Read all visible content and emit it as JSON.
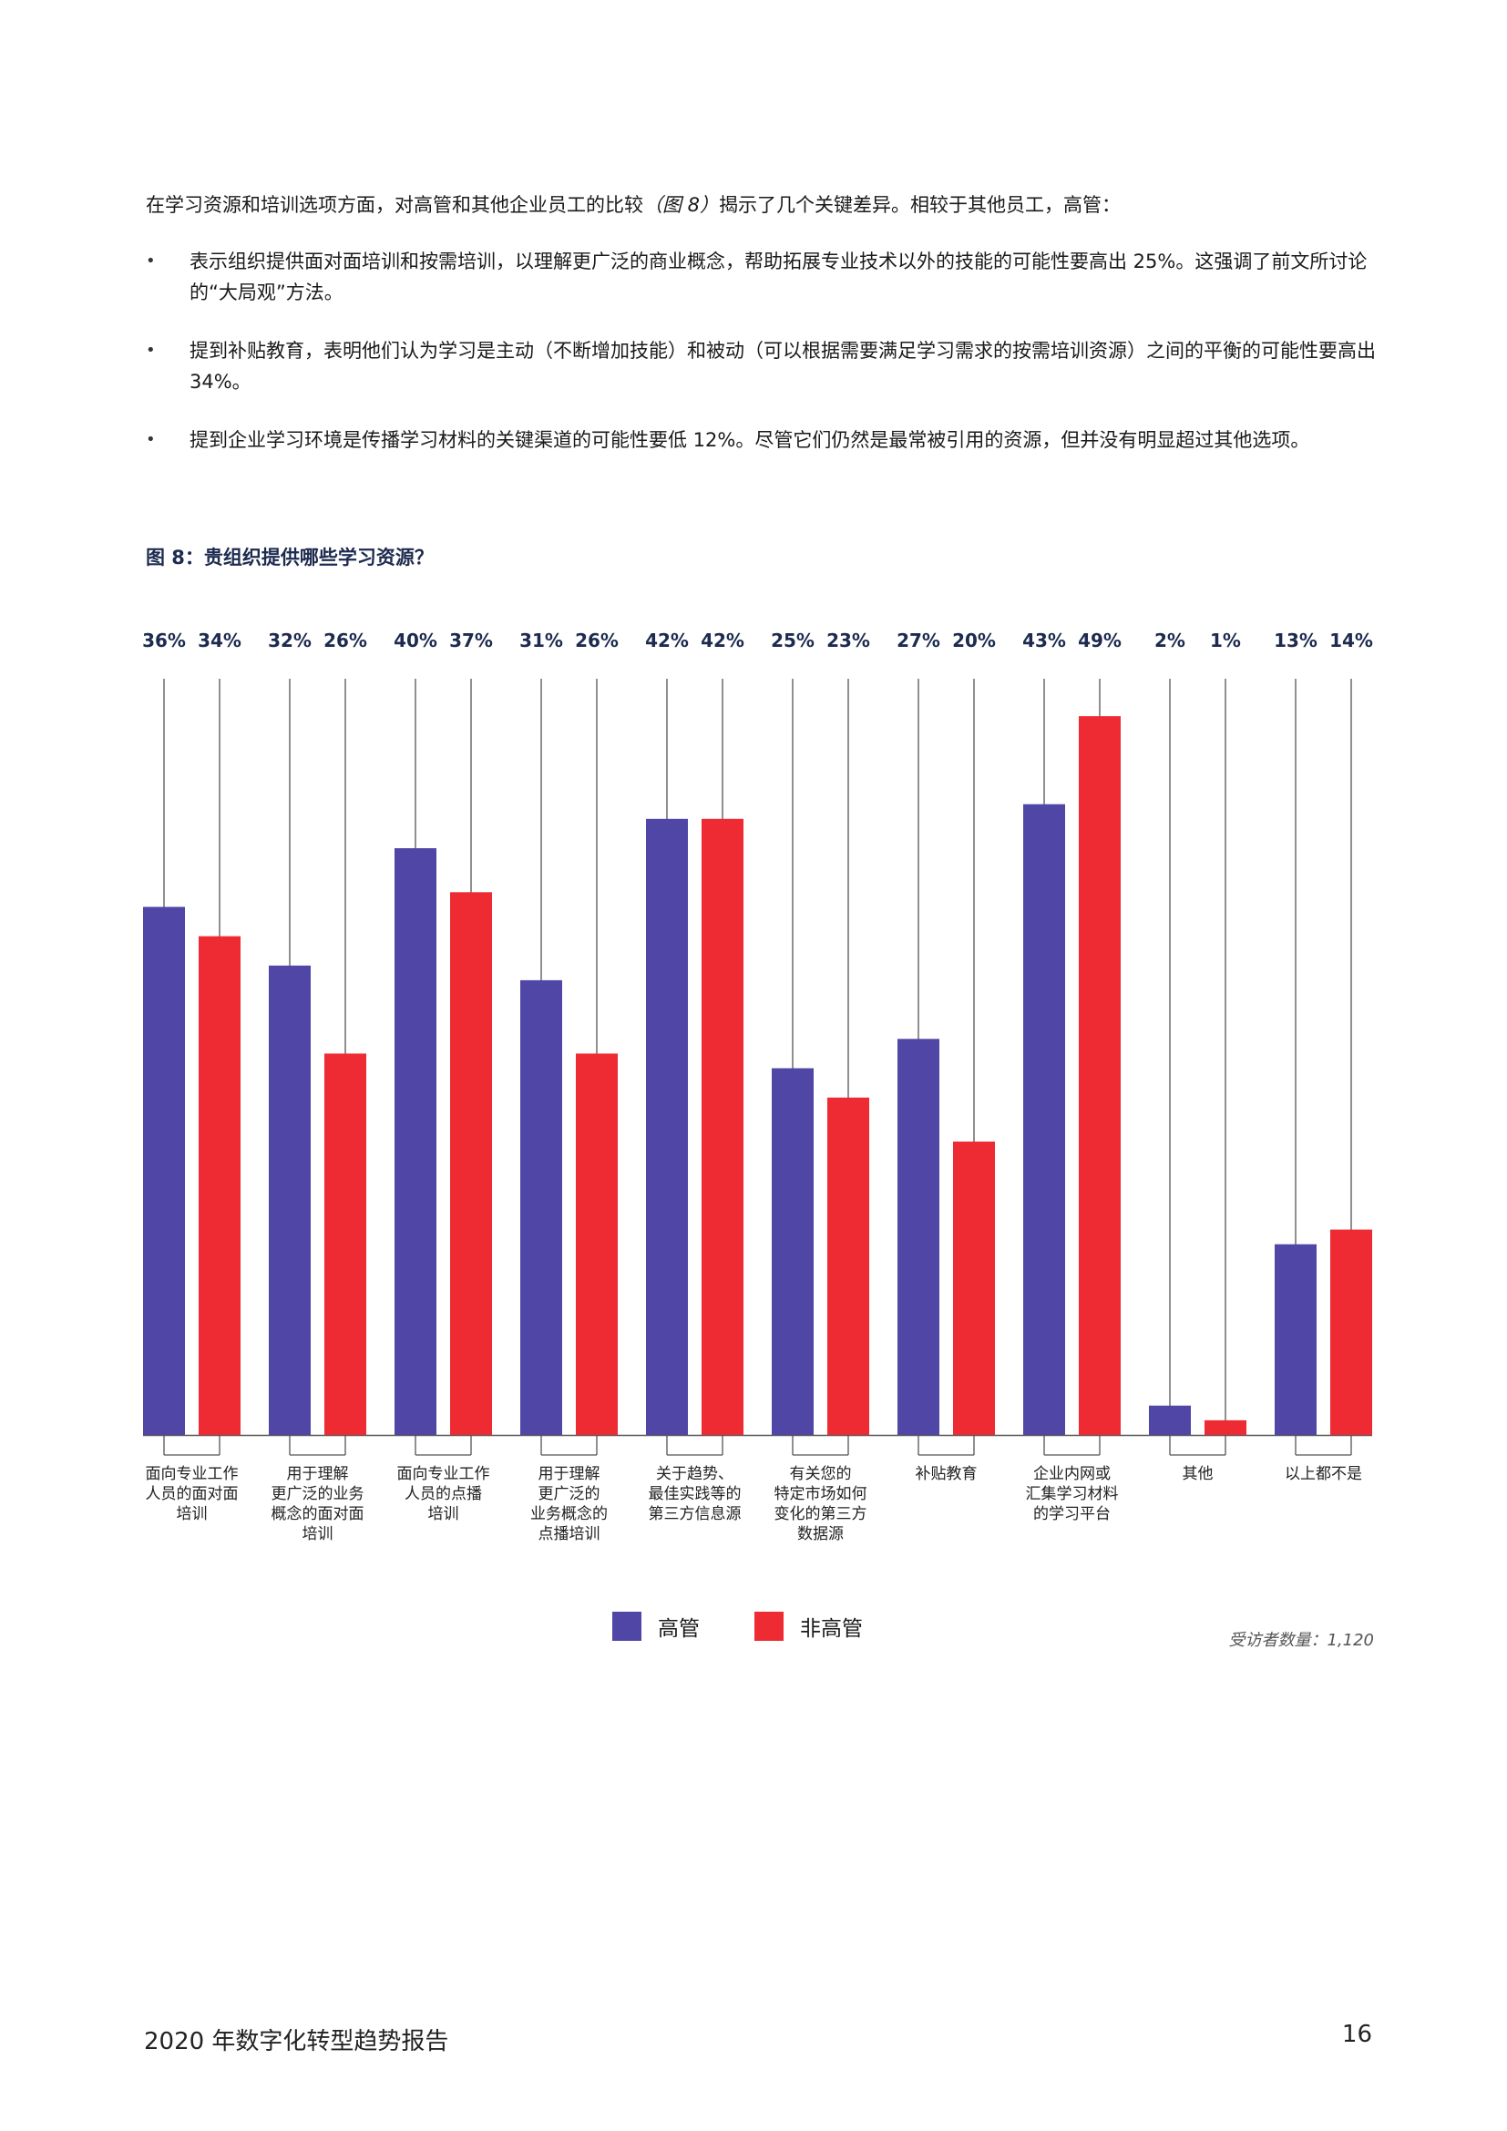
{
  "intro": {
    "text_before": "在学习资源和培训选项方面，对高管和其他企业员工的比较",
    "figure_ref": "（图 8）",
    "text_after": "揭示了几个关键差异。相较于其他员工，高管："
  },
  "bullets": [
    "表示组织提供面对面培训和按需培训，以理解更广泛的商业概念，帮助拓展专业技术以外的技能的可能性要高出 25%。这强调了前文所讨论的“大局观”方法。",
    "提到补贴教育，表明他们认为学习是主动（不断增加技能）和被动（可以根据需要满足学习需求的按需培训资源）之间的平衡的可能性要高出 34%。",
    "提到企业学习环境是传播学习材料的关键渠道的可能性要低 12%。尽管它们仍然是最常被引用的资源，但并没有明显超过其他选项。"
  ],
  "figure_title": "图 8：贵组织提供哪些学习资源？",
  "chart_data": {
    "type": "bar",
    "categories": [
      "面向专业工作\n人员的面对面\n培训",
      "用于理解\n更广泛的业务\n概念的面对面\n培训",
      "面向专业工作\n人员的点播\n培训",
      "用于理解\n更广泛的\n业务概念的\n点播培训",
      "关于趋势、\n最佳实践等的\n第三方信息源",
      "有关您的\n特定市场如何\n变化的第三方\n数据源",
      "补贴教育",
      "企业内网或\n汇集学习材料\n的学习平台",
      "其他",
      "以上都不是"
    ],
    "series": [
      {
        "name": "高管",
        "values": [
          36,
          32,
          40,
          31,
          42,
          25,
          27,
          43,
          2,
          13
        ]
      },
      {
        "name": "非高管",
        "values": [
          34,
          26,
          37,
          26,
          42,
          23,
          20,
          49,
          1,
          14
        ]
      }
    ],
    "value_labels": [
      [
        "36%",
        "32%",
        "40%",
        "31%",
        "42%",
        "25%",
        "27%",
        "43%",
        "2%",
        "13%"
      ],
      [
        "34%",
        "26%",
        "37%",
        "26%",
        "42%",
        "23%",
        "20%",
        "49%",
        "1%",
        "14%"
      ]
    ],
    "ylim": [
      0,
      100
    ],
    "grid": false,
    "legend_position": "bottom-center",
    "colors": {
      "高管": "#4f46a5",
      "非高管": "#ee2a33",
      "label": "#1d2b4f",
      "line": "#555555"
    }
  },
  "legend": {
    "exec_label": "高管",
    "nonexec_label": "非高管"
  },
  "respondents": "受访者数量：1,120",
  "footer": {
    "title": "2020 年数字化转型趋势报告",
    "page": "16"
  }
}
